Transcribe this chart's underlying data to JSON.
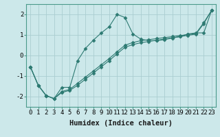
{
  "xlabel": "Humidex (Indice chaleur)",
  "background_color": "#cce8ea",
  "grid_color": "#aacdd0",
  "line_color": "#2d7a72",
  "xlim": [
    -0.5,
    23.5
  ],
  "ylim": [
    -2.5,
    2.5
  ],
  "xticks": [
    0,
    1,
    2,
    3,
    4,
    5,
    6,
    7,
    8,
    9,
    10,
    11,
    12,
    13,
    14,
    15,
    16,
    17,
    18,
    19,
    20,
    21,
    22,
    23
  ],
  "yticks": [
    -2,
    -1,
    0,
    1,
    2
  ],
  "series1_x": [
    0,
    1,
    2,
    3,
    4,
    5,
    6,
    7,
    8,
    9,
    10,
    11,
    12,
    13,
    14,
    15,
    16,
    17,
    18,
    19,
    20,
    21,
    22,
    23
  ],
  "series1_y": [
    -0.55,
    -1.45,
    -1.95,
    -2.1,
    -1.55,
    -1.55,
    -0.25,
    0.35,
    0.75,
    1.1,
    1.4,
    2.0,
    1.85,
    1.05,
    0.8,
    0.72,
    0.72,
    0.77,
    0.85,
    0.92,
    1.05,
    1.1,
    1.1,
    2.2
  ],
  "series2_x": [
    0,
    1,
    2,
    3,
    4,
    5,
    6,
    7,
    8,
    9,
    10,
    11,
    12,
    13,
    14,
    15,
    16,
    17,
    18,
    19,
    20,
    21,
    22,
    23
  ],
  "series2_y": [
    -0.55,
    -1.45,
    -1.95,
    -2.1,
    -1.75,
    -1.65,
    -1.35,
    -1.05,
    -0.75,
    -0.45,
    -0.15,
    0.18,
    0.5,
    0.63,
    0.72,
    0.77,
    0.82,
    0.87,
    0.92,
    0.97,
    1.02,
    1.07,
    1.6,
    2.2
  ],
  "series3_x": [
    0,
    1,
    2,
    3,
    4,
    5,
    6,
    7,
    8,
    9,
    10,
    11,
    12,
    13,
    14,
    15,
    16,
    17,
    18,
    19,
    20,
    21,
    22,
    23
  ],
  "series3_y": [
    -0.55,
    -1.45,
    -1.95,
    -2.1,
    -1.8,
    -1.7,
    -1.45,
    -1.15,
    -0.85,
    -0.55,
    -0.25,
    0.08,
    0.4,
    0.53,
    0.62,
    0.68,
    0.74,
    0.8,
    0.86,
    0.92,
    0.98,
    1.04,
    1.55,
    2.2
  ],
  "marker": "D",
  "markersize": 2.5,
  "linewidth": 0.8,
  "xlabel_fontsize": 7.5,
  "tick_fontsize": 6.5
}
